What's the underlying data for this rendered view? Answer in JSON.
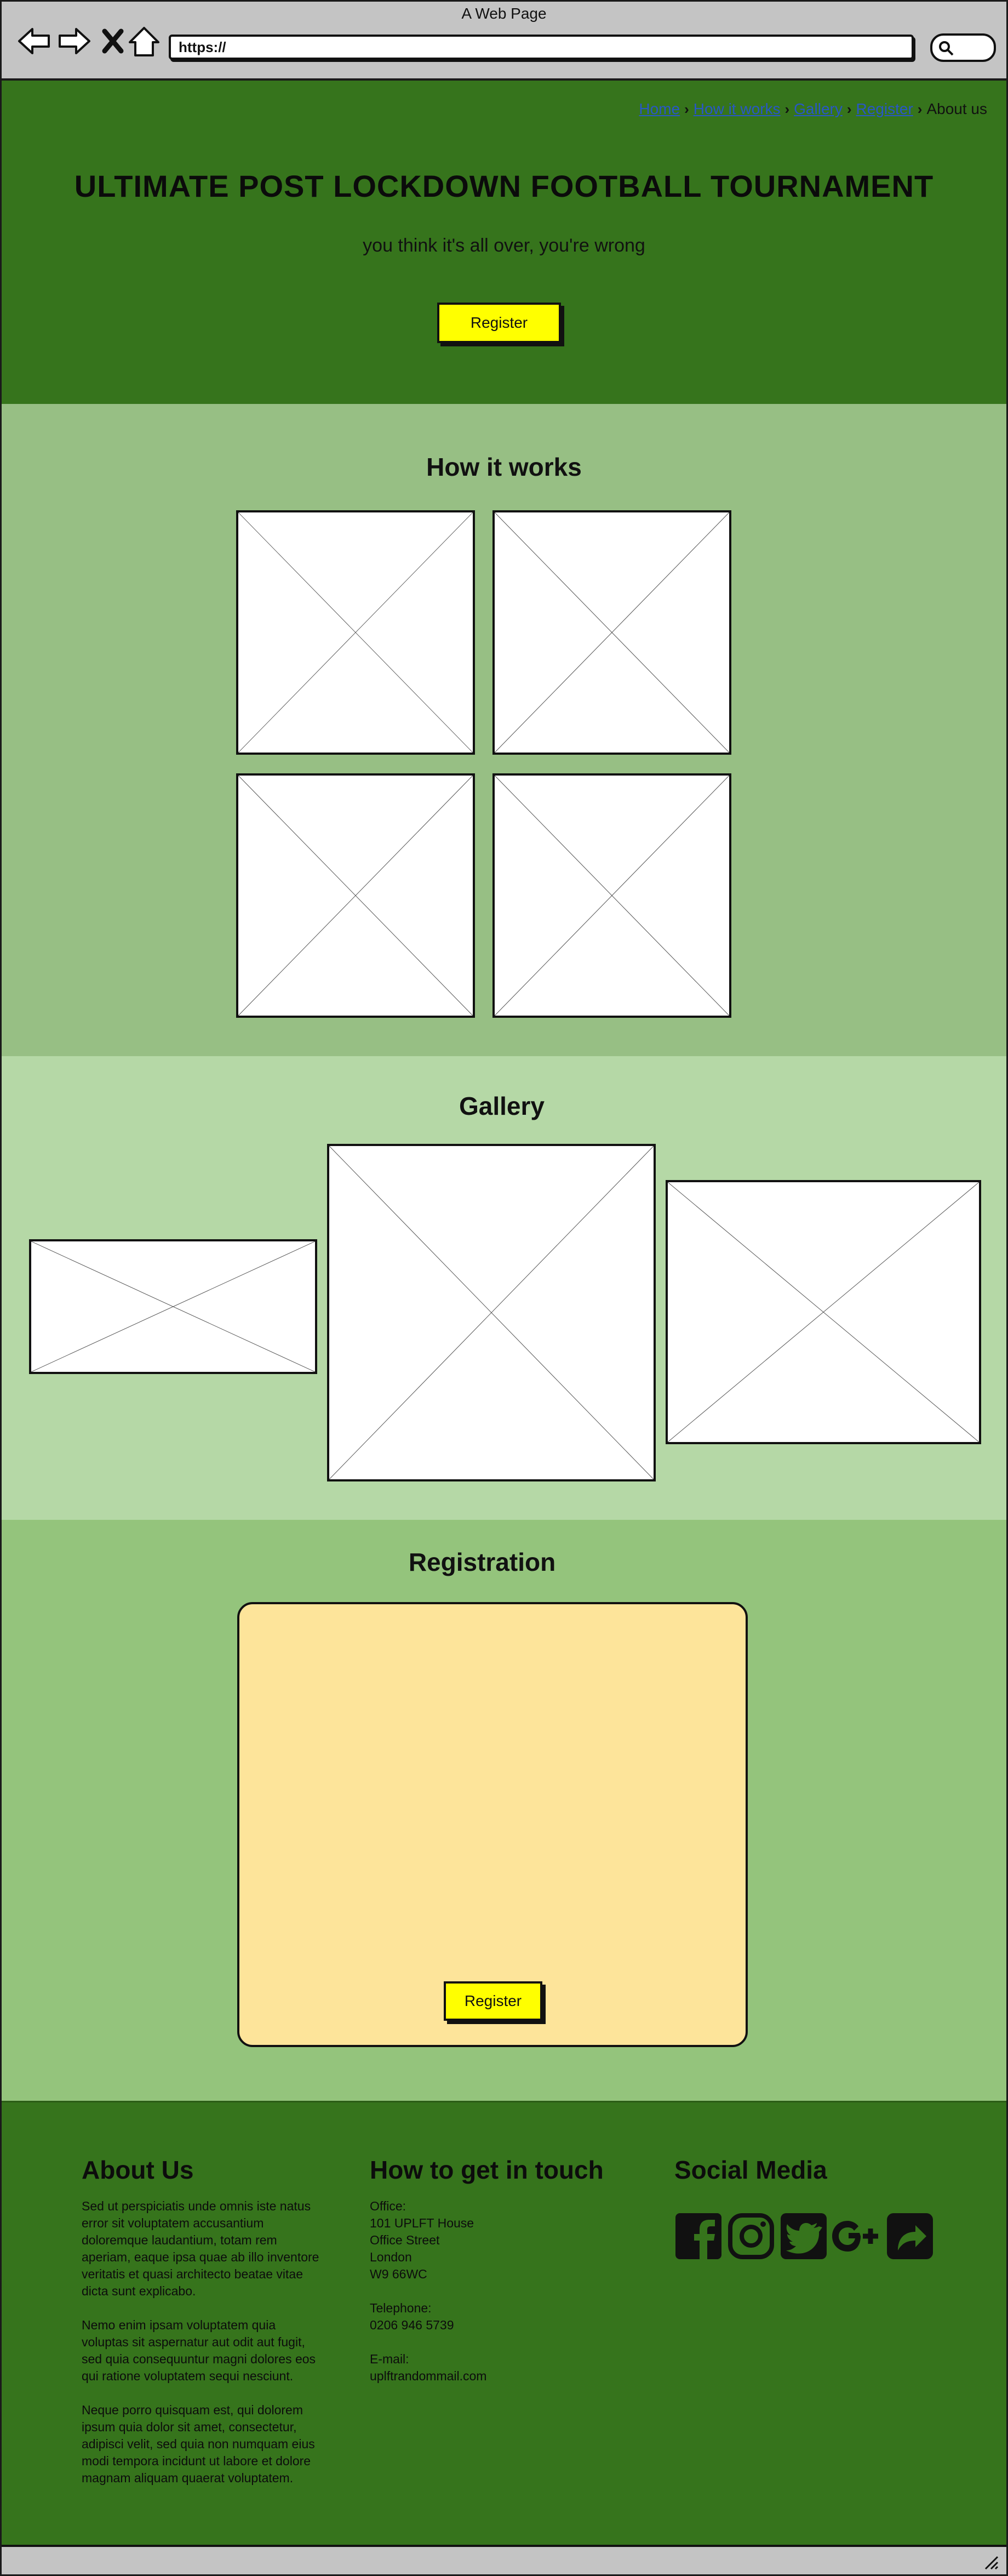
{
  "window": {
    "title": "A Web Page"
  },
  "browser": {
    "url": "https://",
    "buttons": [
      "back-arrow-icon",
      "forward-arrow-icon",
      "close-x-icon",
      "home-icon"
    ],
    "search_icon": "search-icon"
  },
  "breadcrumb": {
    "links": [
      "Home",
      "How it works",
      "Gallery",
      "Register"
    ],
    "current": "About us"
  },
  "hero": {
    "title": "ULTIMATE POST LOCKDOWN FOOTBALL TOURNAMENT",
    "subtitle": "you think it's all over, you're wrong",
    "button": "Register"
  },
  "how": {
    "title": "How it works"
  },
  "gallery": {
    "title": "Gallery"
  },
  "registration": {
    "title": "Registration",
    "button": "Register"
  },
  "footer": {
    "about": {
      "title": "About Us",
      "paragraphs": [
        "Sed ut perspiciatis unde omnis iste natus error sit voluptatem accusantium doloremque laudantium, totam rem aperiam, eaque ipsa quae ab illo inventore veritatis et quasi architecto beatae vitae dicta sunt explicabo.",
        "Nemo enim ipsam voluptatem quia voluptas sit aspernatur aut odit aut fugit, sed quia consequuntur magni dolores eos qui ratione voluptatem sequi nesciunt.",
        "Neque porro quisquam est, qui dolorem ipsum quia dolor sit amet, consectetur, adipisci velit, sed quia non numquam eius modi tempora incidunt ut labore et dolore magnam aliquam quaerat voluptatem."
      ]
    },
    "contact": {
      "title": "How to get in touch",
      "office_label": "Office:",
      "office_lines": [
        "101 UPLFT House",
        "Office Street",
        "London",
        "W9 66WC"
      ],
      "telephone_label": "Telephone:",
      "telephone": "0206 946 5739",
      "email_label": "E-mail:",
      "email": "uplftrandommail.com"
    },
    "social": {
      "title": "Social Media",
      "icons": [
        "facebook-icon",
        "instagram-icon",
        "twitter-icon",
        "google-plus-icon",
        "share-icon"
      ]
    }
  },
  "colors": {
    "hero_bg": "#36741c",
    "how_bg": "#97bf84",
    "gallery_bg": "#b5d8a6",
    "registration_bg": "#94c47c",
    "form_bg": "#fde49a",
    "button_bg": "#ffff00",
    "link": "#2857c7"
  }
}
